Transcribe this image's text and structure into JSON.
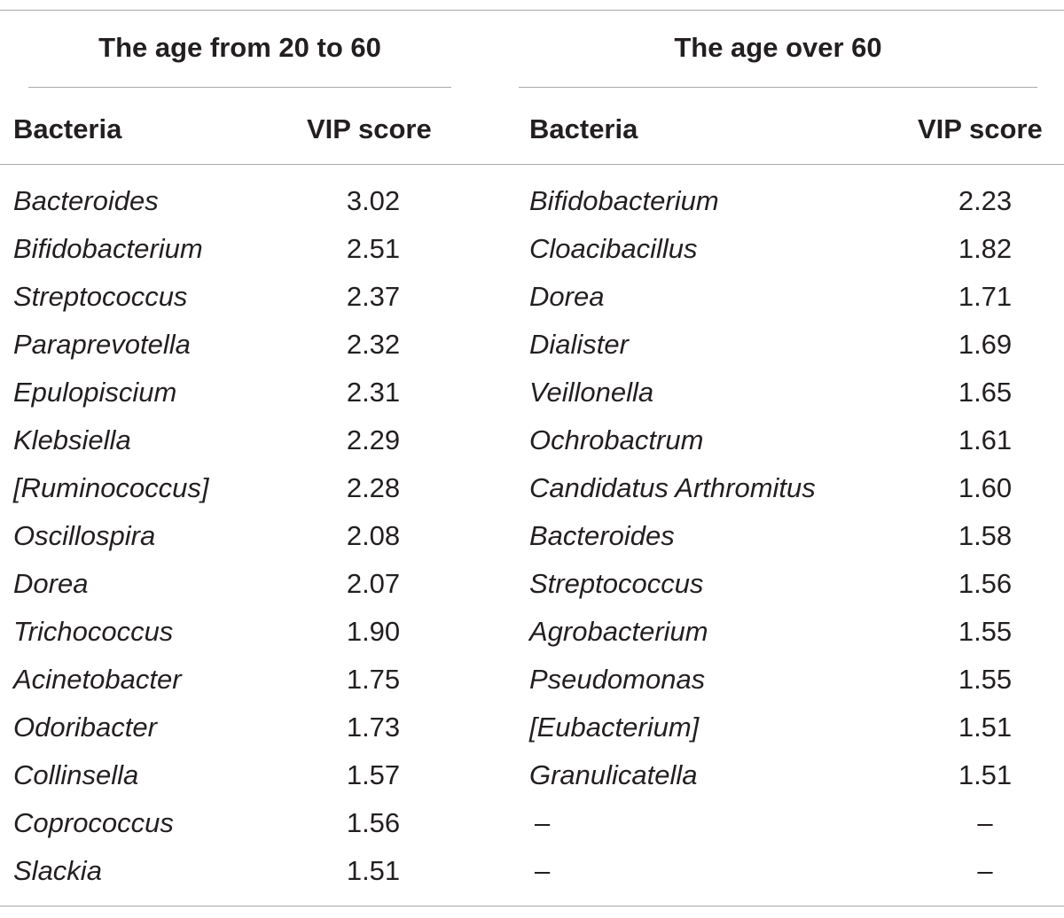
{
  "groups": {
    "left": {
      "title": "The age from 20 to 60",
      "col_bacteria": "Bacteria",
      "col_vip": "VIP score"
    },
    "right": {
      "title": "The age over 60",
      "col_bacteria": "Bacteria",
      "col_vip": "VIP score"
    }
  },
  "rows": [
    {
      "left_bacteria": "Bacteroides",
      "left_vip": "3.02",
      "right_bacteria": "Bifidobacterium",
      "right_vip": "2.23"
    },
    {
      "left_bacteria": "Bifidobacterium",
      "left_vip": "2.51",
      "right_bacteria": "Cloacibacillus",
      "right_vip": "1.82"
    },
    {
      "left_bacteria": "Streptococcus",
      "left_vip": "2.37",
      "right_bacteria": "Dorea",
      "right_vip": "1.71"
    },
    {
      "left_bacteria": "Paraprevotella",
      "left_vip": "2.32",
      "right_bacteria": "Dialister",
      "right_vip": "1.69"
    },
    {
      "left_bacteria": "Epulopiscium",
      "left_vip": "2.31",
      "right_bacteria": "Veillonella",
      "right_vip": "1.65"
    },
    {
      "left_bacteria": "Klebsiella",
      "left_vip": "2.29",
      "right_bacteria": "Ochrobactrum",
      "right_vip": "1.61"
    },
    {
      "left_bacteria": "[Ruminococcus]",
      "left_vip": "2.28",
      "right_bacteria": "Candidatus Arthromitus",
      "right_vip": "1.60"
    },
    {
      "left_bacteria": "Oscillospira",
      "left_vip": "2.08",
      "right_bacteria": "Bacteroides",
      "right_vip": "1.58"
    },
    {
      "left_bacteria": "Dorea",
      "left_vip": "2.07",
      "right_bacteria": "Streptococcus",
      "right_vip": "1.56"
    },
    {
      "left_bacteria": "Trichococcus",
      "left_vip": "1.90",
      "right_bacteria": "Agrobacterium",
      "right_vip": "1.55"
    },
    {
      "left_bacteria": "Acinetobacter",
      "left_vip": "1.75",
      "right_bacteria": "Pseudomonas",
      "right_vip": "1.55"
    },
    {
      "left_bacteria": "Odoribacter",
      "left_vip": "1.73",
      "right_bacteria": "[Eubacterium]",
      "right_vip": "1.51"
    },
    {
      "left_bacteria": "Collinsella",
      "left_vip": "1.57",
      "right_bacteria": "Granulicatella",
      "right_vip": "1.51"
    },
    {
      "left_bacteria": "Coprococcus",
      "left_vip": "1.56",
      "right_bacteria": "–",
      "right_vip": "–"
    },
    {
      "left_bacteria": "Slackia",
      "left_vip": "1.51",
      "right_bacteria": "–",
      "right_vip": "–"
    }
  ]
}
